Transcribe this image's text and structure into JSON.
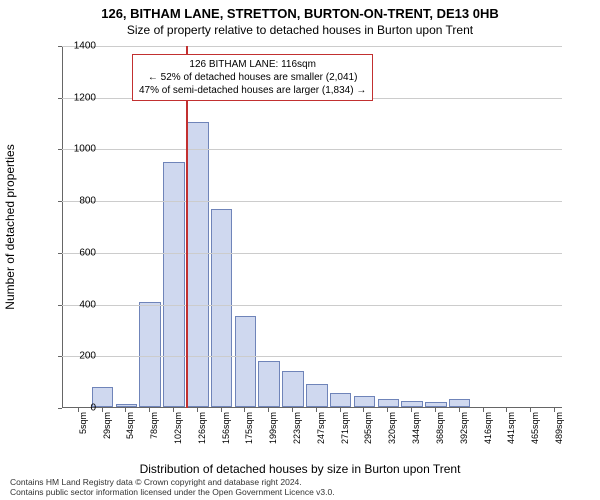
{
  "title": "126, BITHAM LANE, STRETTON, BURTON-ON-TRENT, DE13 0HB",
  "subtitle": "Size of property relative to detached houses in Burton upon Trent",
  "chart": {
    "type": "histogram",
    "ylabel": "Number of detached properties",
    "xlabel": "Distribution of detached houses by size in Burton upon Trent",
    "ylim": [
      0,
      1400
    ],
    "ytick_step": 200,
    "bar_fill": "#cfd8ef",
    "bar_stroke": "#6f84b9",
    "grid_color": "#cccccc",
    "axis_color": "#666666",
    "background": "#ffffff",
    "ref_line_color": "#c23030",
    "ref_line_x_index": 5,
    "x_labels": [
      "5sqm",
      "29sqm",
      "54sqm",
      "78sqm",
      "102sqm",
      "126sqm",
      "156sqm",
      "175sqm",
      "199sqm",
      "223sqm",
      "247sqm",
      "271sqm",
      "295sqm",
      "320sqm",
      "344sqm",
      "368sqm",
      "392sqm",
      "416sqm",
      "441sqm",
      "465sqm",
      "489sqm"
    ],
    "values": [
      0,
      70,
      5,
      400,
      940,
      1095,
      760,
      345,
      170,
      130,
      80,
      45,
      35,
      25,
      15,
      10,
      25,
      0,
      0,
      0,
      0
    ],
    "annotation": {
      "line1": "126 BITHAM LANE: 116sqm",
      "line2": "← 52% of detached houses are smaller (2,041)",
      "line3": "47% of semi-detached houses are larger (1,834) →",
      "border_color": "#c23030"
    }
  },
  "footer": {
    "line1": "Contains HM Land Registry data © Crown copyright and database right 2024.",
    "line2": "Contains public sector information licensed under the Open Government Licence v3.0."
  }
}
